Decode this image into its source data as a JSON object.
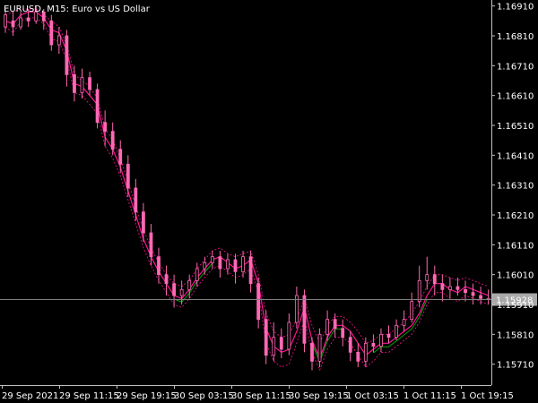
{
  "chart_data": {
    "type": "candlestick",
    "title": "EURUSD, M15:  Euro vs US Dollar",
    "current_price": "1.15928",
    "y_ticks": [
      "1.16910",
      "1.16810",
      "1.16710",
      "1.16610",
      "1.16510",
      "1.16410",
      "1.16310",
      "1.16210",
      "1.16110",
      "1.16010",
      "1.15910",
      "1.15810",
      "1.15710"
    ],
    "x_ticks": [
      "29 Sep 2021",
      "29 Sep 11:15",
      "29 Sep 19:15",
      "30 Sep 03:15",
      "30 Sep 11:15",
      "30 Sep 19:15",
      "1 Oct 03:15",
      "1 Oct 11:15",
      "1 Oct 19:15"
    ],
    "ylim": [
      1.1564,
      1.1693
    ],
    "colors": {
      "background": "#000000",
      "axis": "#c0c0c0",
      "text": "#ffffff",
      "candle": "#ff69b4",
      "ma_down": "#ff1493",
      "ma_up": "#00a000",
      "price_line": "#808080",
      "badge_bg": "#a9a9a9"
    },
    "series": [
      {
        "values": [
          1.1686,
          1.1685,
          1.1688,
          1.1689,
          1.1689,
          1.1687,
          1.1683,
          1.1682,
          1.1676,
          1.1665,
          1.1664,
          1.1661,
          1.1658,
          1.1647,
          1.1643,
          1.1637,
          1.1629,
          1.1621,
          1.1613,
          1.1607,
          1.1602,
          1.1598,
          1.1594,
          1.1593,
          1.1596,
          1.16,
          1.1603,
          1.1606,
          1.1607,
          1.1605,
          1.1603,
          1.1604,
          1.1606,
          1.1598,
          1.1583,
          1.1577,
          1.1575,
          1.1576,
          1.1582,
          1.159,
          1.1579,
          1.1573,
          1.158,
          1.1584,
          1.1584,
          1.1582,
          1.1578,
          1.1574,
          1.1576,
          1.1578,
          1.1578,
          1.158,
          1.1582,
          1.1584,
          1.1588,
          1.1594,
          1.1598,
          1.1598,
          1.1596,
          1.1595,
          1.1597,
          1.1596,
          1.1595,
          1.1594
        ]
      },
      {
        "values": [
          1.1688,
          1.1689,
          1.169,
          1.169,
          1.169,
          1.1688,
          1.1686,
          1.1684,
          1.1678,
          1.1668,
          1.1666,
          1.1664,
          1.166,
          1.165,
          1.1646,
          1.164,
          1.1632,
          1.1624,
          1.1616,
          1.161,
          1.1605,
          1.1601,
          1.1598,
          1.1597,
          1.1599,
          1.1603,
          1.1606,
          1.1609,
          1.161,
          1.1608,
          1.1607,
          1.1608,
          1.1609,
          1.1601,
          1.1588,
          1.1582,
          1.158,
          1.1581,
          1.1586,
          1.1593,
          1.1584,
          1.1578,
          1.1584,
          1.1587,
          1.1587,
          1.1585,
          1.1582,
          1.1578,
          1.1579,
          1.1581,
          1.1581,
          1.1583,
          1.1585,
          1.1588,
          1.1592,
          1.1597,
          1.1601,
          1.1601,
          1.16,
          1.1599,
          1.16,
          1.1599,
          1.1598,
          1.1597
        ]
      },
      {
        "values": [
          1.1684,
          1.1682,
          1.1686,
          1.1687,
          1.1687,
          1.1685,
          1.168,
          1.1679,
          1.1673,
          1.1662,
          1.1661,
          1.1658,
          1.1655,
          1.1644,
          1.164,
          1.1634,
          1.1626,
          1.1618,
          1.161,
          1.1604,
          1.1599,
          1.1595,
          1.1591,
          1.159,
          1.1593,
          1.1597,
          1.16,
          1.1603,
          1.1604,
          1.1602,
          1.16,
          1.1601,
          1.1603,
          1.1595,
          1.1578,
          1.1572,
          1.157,
          1.1571,
          1.1578,
          1.1586,
          1.1575,
          1.1569,
          1.1576,
          1.158,
          1.158,
          1.1578,
          1.1574,
          1.157,
          1.1572,
          1.1575,
          1.1575,
          1.1577,
          1.1579,
          1.1581,
          1.1585,
          1.1591,
          1.1595,
          1.1595,
          1.1593,
          1.1592,
          1.1594,
          1.1593,
          1.1592,
          1.1591
        ]
      }
    ],
    "candles": [
      [
        1.1684,
        1.1688,
        1.169,
        1.1682
      ],
      [
        1.1686,
        1.1684,
        1.1689,
        1.1681
      ],
      [
        1.1684,
        1.1687,
        1.1689,
        1.1683
      ],
      [
        1.1687,
        1.1686,
        1.169,
        1.1684
      ],
      [
        1.1686,
        1.1689,
        1.1691,
        1.1685
      ],
      [
        1.1689,
        1.1686,
        1.169,
        1.1683
      ],
      [
        1.1686,
        1.1678,
        1.1688,
        1.1676
      ],
      [
        1.1678,
        1.1681,
        1.1684,
        1.1675
      ],
      [
        1.1681,
        1.1668,
        1.1683,
        1.1664
      ],
      [
        1.1668,
        1.1662,
        1.1671,
        1.1659
      ],
      [
        1.1662,
        1.1667,
        1.167,
        1.166
      ],
      [
        1.1667,
        1.1663,
        1.1669,
        1.1661
      ],
      [
        1.1663,
        1.1652,
        1.1665,
        1.165
      ],
      [
        1.1652,
        1.1649,
        1.1656,
        1.1644
      ],
      [
        1.1649,
        1.1643,
        1.1652,
        1.1641
      ],
      [
        1.1643,
        1.1638,
        1.1646,
        1.1635
      ],
      [
        1.1638,
        1.163,
        1.1641,
        1.1627
      ],
      [
        1.163,
        1.1622,
        1.1633,
        1.1619
      ],
      [
        1.1622,
        1.1615,
        1.1625,
        1.1612
      ],
      [
        1.1615,
        1.1607,
        1.1618,
        1.1604
      ],
      [
        1.1607,
        1.1601,
        1.161,
        1.1598
      ],
      [
        1.1601,
        1.1598,
        1.1604,
        1.1594
      ],
      [
        1.1598,
        1.1594,
        1.1601,
        1.159
      ],
      [
        1.1594,
        1.1596,
        1.1599,
        1.1591
      ],
      [
        1.1596,
        1.1599,
        1.1601,
        1.1593
      ],
      [
        1.1599,
        1.1603,
        1.1605,
        1.1597
      ],
      [
        1.1603,
        1.1605,
        1.1607,
        1.1601
      ],
      [
        1.1605,
        1.1607,
        1.1609,
        1.1603
      ],
      [
        1.1607,
        1.1603,
        1.1609,
        1.16
      ],
      [
        1.1603,
        1.1606,
        1.1608,
        1.1601
      ],
      [
        1.1606,
        1.1602,
        1.1608,
        1.1598
      ],
      [
        1.1602,
        1.1607,
        1.1609,
        1.16
      ],
      [
        1.1607,
        1.1598,
        1.1609,
        1.1595
      ],
      [
        1.1598,
        1.1586,
        1.16,
        1.1583
      ],
      [
        1.1586,
        1.1574,
        1.1589,
        1.1571
      ],
      [
        1.1574,
        1.158,
        1.1585,
        1.1572
      ],
      [
        1.158,
        1.1576,
        1.1583,
        1.1573
      ],
      [
        1.1576,
        1.1585,
        1.1588,
        1.1574
      ],
      [
        1.1585,
        1.1594,
        1.1597,
        1.1583
      ],
      [
        1.1594,
        1.1578,
        1.1596,
        1.1575
      ],
      [
        1.1578,
        1.1572,
        1.158,
        1.1569
      ],
      [
        1.1572,
        1.1581,
        1.1583,
        1.157
      ],
      [
        1.1581,
        1.1586,
        1.1589,
        1.1579
      ],
      [
        1.1586,
        1.1583,
        1.1588,
        1.158
      ],
      [
        1.1583,
        1.158,
        1.1586,
        1.1577
      ],
      [
        1.158,
        1.1575,
        1.1582,
        1.1572
      ],
      [
        1.1575,
        1.1572,
        1.1578,
        1.157
      ],
      [
        1.1572,
        1.1578,
        1.158,
        1.157
      ],
      [
        1.1578,
        1.1577,
        1.1581,
        1.1575
      ],
      [
        1.1577,
        1.1581,
        1.1583,
        1.1575
      ],
      [
        1.1581,
        1.158,
        1.1584,
        1.1578
      ],
      [
        1.158,
        1.1584,
        1.1586,
        1.1579
      ],
      [
        1.1584,
        1.1586,
        1.1589,
        1.1582
      ],
      [
        1.1586,
        1.1592,
        1.1595,
        1.1585
      ],
      [
        1.1592,
        1.1599,
        1.1604,
        1.159
      ],
      [
        1.1599,
        1.1601,
        1.1607,
        1.1596
      ],
      [
        1.1601,
        1.1598,
        1.1604,
        1.1594
      ],
      [
        1.1598,
        1.1596,
        1.1601,
        1.1592
      ],
      [
        1.1596,
        1.1597,
        1.16,
        1.1593
      ],
      [
        1.1597,
        1.1596,
        1.16,
        1.1594
      ],
      [
        1.1596,
        1.1595,
        1.1599,
        1.1592
      ],
      [
        1.1595,
        1.1594,
        1.1598,
        1.1591
      ],
      [
        1.1594,
        1.1593,
        1.1597,
        1.1591
      ],
      [
        1.1593,
        1.1593,
        1.1596,
        1.1591
      ]
    ]
  }
}
